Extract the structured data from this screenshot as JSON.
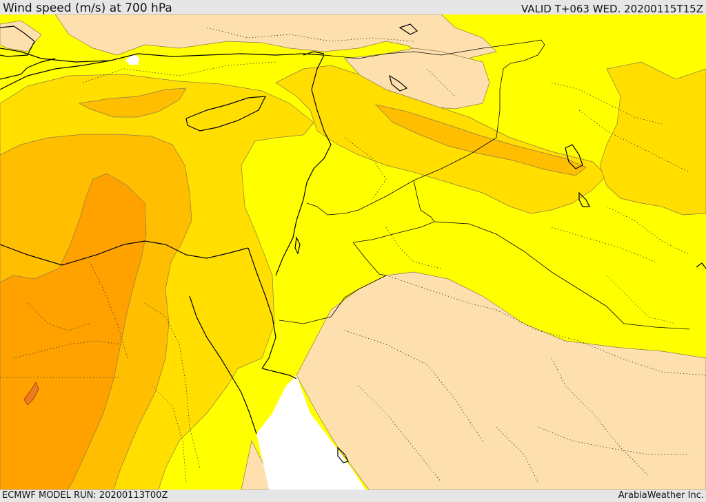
{
  "header": {
    "title": "Wind speed (m/s) at 700 hPa",
    "valid": "VALID T+063 WED. 20200115T15Z"
  },
  "footer": {
    "model_run": "ECMWF MODEL RUN: 20200113T00Z",
    "credit": "ArabiaWeather Inc."
  },
  "legend_colors": {
    "calm": "#ffffff",
    "light": "#fde0ad",
    "moderate": "#ffff00",
    "fresh": "#ffde00",
    "strong": "#ffbe00",
    "very_strong": "#ffa200",
    "extreme": "#ff8a14"
  }
}
